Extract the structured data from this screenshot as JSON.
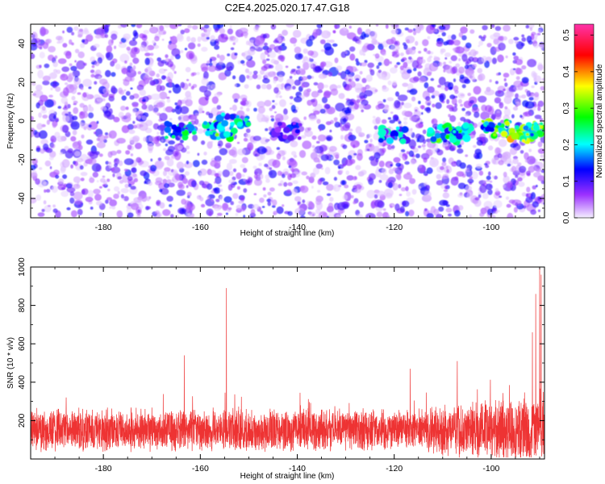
{
  "title": "C2E4.2025.020.17.47.G18",
  "chart_data": [
    {
      "type": "heatmap",
      "title": "C2E4.2025.020.17.47.G18",
      "xlabel": "Height of straight line (km)",
      "ylabel": "Frequency (Hz)",
      "xlim": [
        -195,
        -89
      ],
      "ylim": [
        -50,
        50
      ],
      "x_ticks": [
        -180,
        -160,
        -140,
        -120,
        -100
      ],
      "y_ticks": [
        -40,
        -20,
        0,
        20,
        40
      ],
      "colorbar": {
        "label": "Normalized spectral amplitude",
        "range": [
          0,
          0.53
        ],
        "ticks": [
          0.0,
          0.1,
          0.2,
          0.3,
          0.4,
          0.5
        ],
        "colormap": [
          "#f0e6ff",
          "#8a2be2",
          "#0000ff",
          "#00ffff",
          "#00ff00",
          "#ffff00",
          "#ff0000",
          "#ff00ff"
        ]
      },
      "background_intensity": 0.1,
      "ridge": {
        "frequency_hz": -5,
        "hotspots": [
          {
            "x": -164,
            "y": -5,
            "amplitude": 0.27
          },
          {
            "x": -156,
            "y": -5,
            "amplitude": 0.32
          },
          {
            "x": -153,
            "y": 0,
            "amplitude": 0.25
          },
          {
            "x": -142,
            "y": -5,
            "amplitude": 0.15
          },
          {
            "x": -120,
            "y": -7,
            "amplitude": 0.24
          },
          {
            "x": -110,
            "y": -7,
            "amplitude": 0.33
          },
          {
            "x": -107,
            "y": -6,
            "amplitude": 0.3
          },
          {
            "x": -99,
            "y": -4,
            "amplitude": 0.35
          },
          {
            "x": -93,
            "y": -7,
            "amplitude": 0.42
          },
          {
            "x": -90,
            "y": -4,
            "amplitude": 0.4
          }
        ]
      }
    },
    {
      "type": "line",
      "xlabel": "Height of straight line (km)",
      "ylabel": "SNR (10 * v/v)",
      "xlim": [
        -195,
        -89
      ],
      "ylim": [
        0,
        1000
      ],
      "x_ticks": [
        -180,
        -160,
        -140,
        -120,
        -100
      ],
      "y_ticks": [
        200,
        400,
        600,
        800,
        1000
      ],
      "color": "#ee3333",
      "baseline": {
        "mean": 150,
        "spread": 120
      },
      "peaks": [
        {
          "x": -154.6,
          "y": 890
        },
        {
          "x": -90,
          "y": 1000
        },
        {
          "x": -89.7,
          "y": 960
        },
        {
          "x": -90.8,
          "y": 860
        },
        {
          "x": -91.5,
          "y": 660
        },
        {
          "x": -163.3,
          "y": 540
        },
        {
          "x": -107,
          "y": 510
        },
        {
          "x": -116.7,
          "y": 470
        }
      ]
    }
  ]
}
